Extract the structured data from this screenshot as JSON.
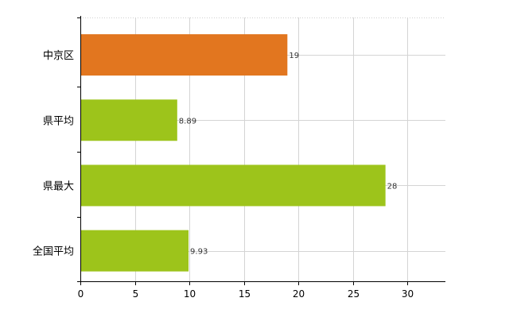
{
  "chart_data": {
    "type": "bar",
    "orientation": "horizontal",
    "title": "",
    "xlabel": "",
    "ylabel": "",
    "categories": [
      "中京区",
      "県平均",
      "県最大",
      "全国平均"
    ],
    "values": [
      19,
      8.89,
      28,
      9.93
    ],
    "value_labels": [
      "19",
      "8.89",
      "28",
      "9.93"
    ],
    "colors": [
      "#e2761f",
      "#9dc41b",
      "#9dc41b",
      "#9dc41b"
    ],
    "xlim": [
      0,
      33.5
    ],
    "x_ticks": [
      0,
      5,
      10,
      15,
      20,
      25,
      30
    ],
    "x_tick_labels": [
      "0",
      "5",
      "10",
      "15",
      "20",
      "25",
      "30"
    ],
    "grid": true,
    "legend": "none"
  }
}
